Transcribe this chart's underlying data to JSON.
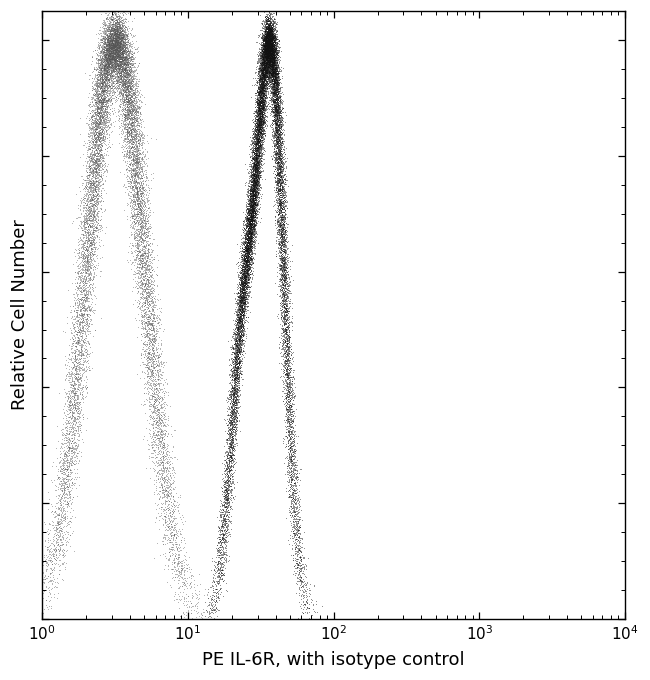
{
  "title": "",
  "xlabel": "PE IL-6R, with isotype control",
  "ylabel": "Relative Cell Number",
  "background_color": "#ffffff",
  "isotype_color": "#555555",
  "antibody_color": "#111111",
  "xlabel_fontsize": 13,
  "ylabel_fontsize": 13,
  "tick_fontsize": 11,
  "iso_peak_log": 0.5,
  "iso_peak_std": 0.2,
  "ab_peak_log": 1.57,
  "ab_peak_std": 0.09,
  "ab_shoulder_log": 1.38,
  "ab_shoulder_std": 0.09,
  "ab_shoulder_weight": 0.5
}
